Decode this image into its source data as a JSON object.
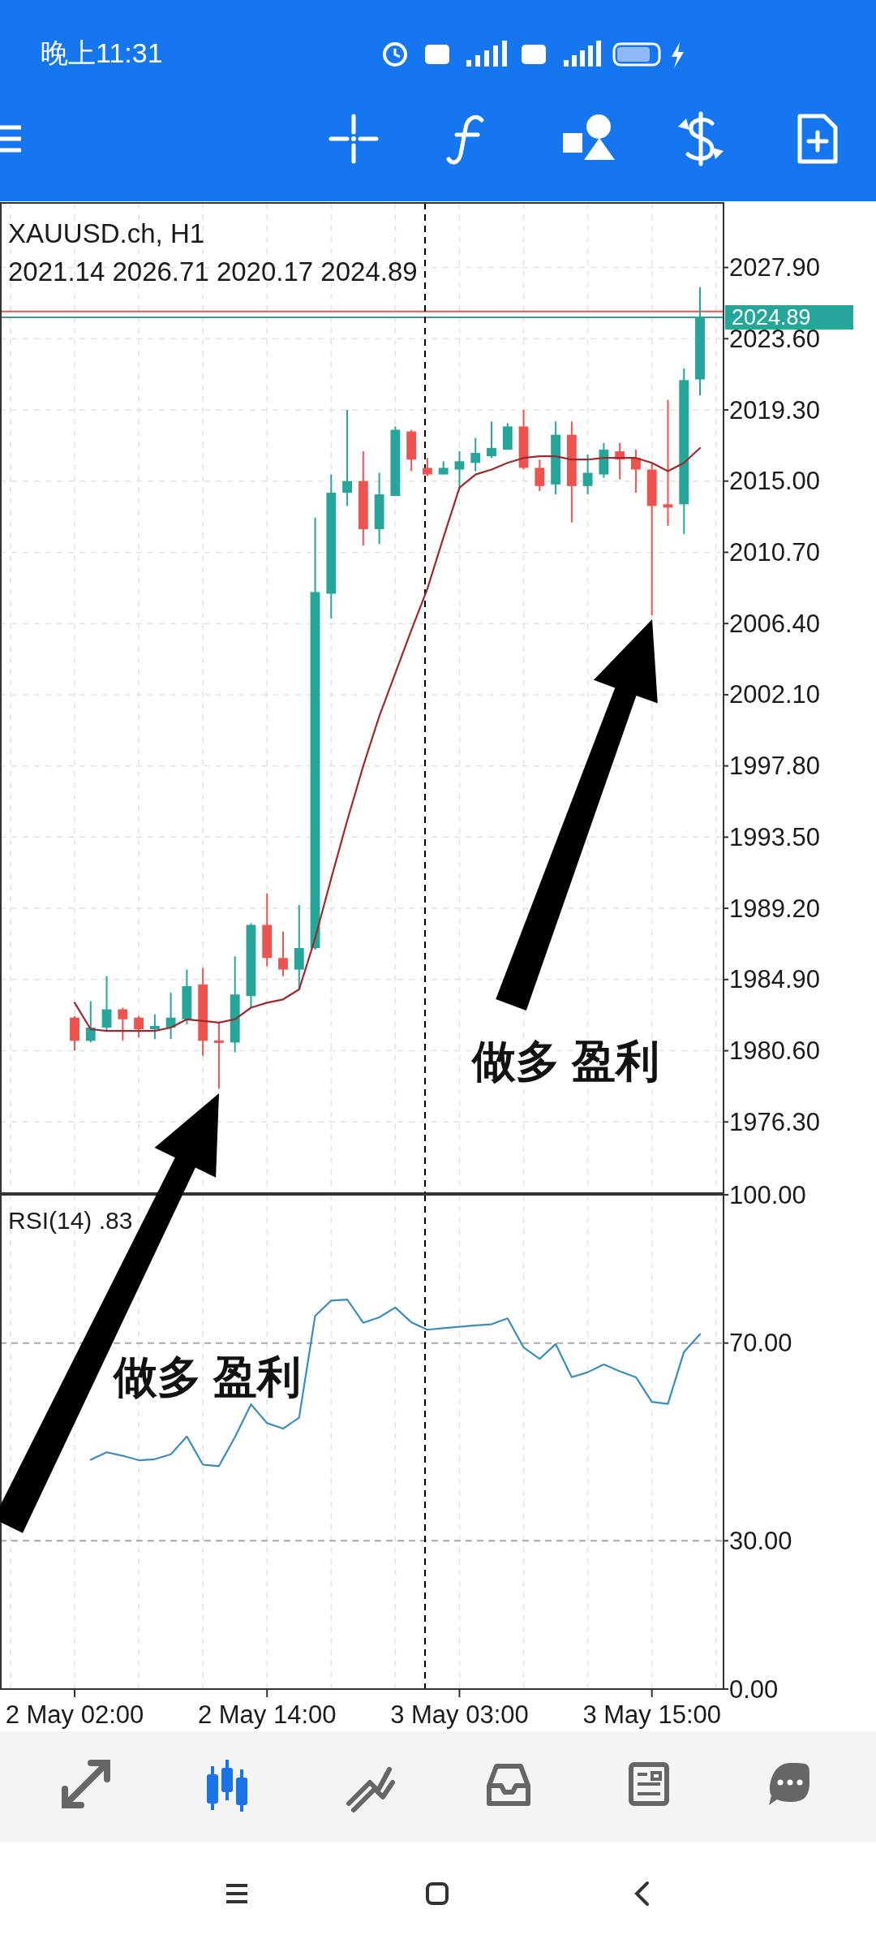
{
  "chart_data": [
    {
      "type": "candlestick",
      "title": "XAUUSD.ch, H1",
      "subtitle": "2021.14 2026.71 2020.17 2024.89",
      "categories": [
        null,
        null,
        null,
        null,
        null,
        null,
        null,
        null,
        null,
        null,
        null,
        null,
        null,
        null,
        null,
        null,
        null,
        null,
        null,
        null,
        null,
        null,
        null,
        null,
        null,
        null,
        null,
        null,
        null,
        null,
        null,
        null,
        null,
        null,
        null,
        null,
        null,
        null,
        null,
        null
      ],
      "ohlc": [
        [
          1982.6,
          1982.7,
          1980.6,
          1981.2
        ],
        [
          1981.2,
          1983.6,
          1981.1,
          1982.0
        ],
        [
          1982.0,
          1985.1,
          1981.8,
          1983.1
        ],
        [
          1983.1,
          1983.2,
          1981.2,
          1982.5
        ],
        [
          1982.6,
          1982.7,
          1981.4,
          1981.9
        ],
        [
          1981.9,
          1982.8,
          1981.3,
          1982.1
        ],
        [
          1982.0,
          1984.1,
          1981.3,
          1982.6
        ],
        [
          1982.5,
          1985.5,
          1982.2,
          1984.5
        ],
        [
          1984.6,
          1985.6,
          1980.3,
          1981.2
        ],
        [
          1981.2,
          1982.3,
          1978.3,
          1981.1
        ],
        [
          1981.1,
          1986.3,
          1980.5,
          1984.0
        ],
        [
          1983.9,
          1988.3,
          1983.2,
          1988.2
        ],
        [
          1988.2,
          1990.1,
          1985.7,
          1986.2
        ],
        [
          1986.2,
          1987.8,
          1985.1,
          1985.5
        ],
        [
          1985.5,
          1989.4,
          1984.3,
          1986.8
        ],
        [
          1986.8,
          2012.8,
          1986.7,
          2008.3
        ],
        [
          2008.2,
          2015.4,
          2006.7,
          2014.3
        ],
        [
          2014.3,
          2019.3,
          2013.5,
          2015.0
        ],
        [
          2015.0,
          2016.8,
          2011.1,
          2012.1
        ],
        [
          2012.1,
          2015.5,
          2011.2,
          2014.2
        ],
        [
          2014.1,
          2018.3,
          2014.1,
          2018.1
        ],
        [
          2018.0,
          2018.1,
          2015.6,
          2016.3
        ],
        [
          2015.8,
          2016.4,
          2015.3,
          2015.4
        ],
        [
          2015.4,
          2016.2,
          2015.4,
          2015.8
        ],
        [
          2015.7,
          2016.8,
          2014.6,
          2016.2
        ],
        [
          2016.1,
          2017.6,
          2015.6,
          2016.7
        ],
        [
          2016.5,
          2018.6,
          2016.4,
          2017.0
        ],
        [
          2016.9,
          2018.5,
          2016.9,
          2018.3
        ],
        [
          2018.3,
          2019.3,
          2015.7,
          2015.8
        ],
        [
          2015.8,
          2016.3,
          2014.4,
          2014.7
        ],
        [
          2014.8,
          2018.6,
          2014.2,
          2017.8
        ],
        [
          2017.8,
          2018.6,
          2012.5,
          2014.7
        ],
        [
          2014.7,
          2016.6,
          2014.2,
          2015.5
        ],
        [
          2015.4,
          2017.3,
          2015.2,
          2016.9
        ],
        [
          2016.8,
          2017.3,
          2015.1,
          2016.3
        ],
        [
          2016.4,
          2016.9,
          2014.3,
          2015.7
        ],
        [
          2015.7,
          2016.1,
          2006.9,
          2013.5
        ],
        [
          2013.6,
          2019.9,
          2012.3,
          2013.4
        ],
        [
          2013.6,
          2021.8,
          2011.8,
          2021.1
        ],
        [
          2021.14,
          2026.71,
          2020.17,
          2024.89
        ]
      ],
      "colors": [
        "#ef5350",
        "#26a69a",
        "#26a69a",
        "#ef5350",
        "#ef5350",
        "#26a69a",
        "#26a69a",
        "#26a69a",
        "#ef5350",
        "#ef5350",
        "#26a69a",
        "#26a69a",
        "#ef5350",
        "#ef5350",
        "#26a69a",
        "#26a69a",
        "#26a69a",
        "#26a69a",
        "#ef5350",
        "#26a69a",
        "#26a69a",
        "#ef5350",
        "#ef5350",
        "#26a69a",
        "#26a69a",
        "#26a69a",
        "#26a69a",
        "#26a69a",
        "#ef5350",
        "#ef5350",
        "#26a69a",
        "#ef5350",
        "#26a69a",
        "#26a69a",
        "#ef5350",
        "#ef5350",
        "#ef5350",
        "#ef5350",
        "#26a69a",
        "#26a69a"
      ],
      "series": [
        {
          "type": "line",
          "color": "#a0282d",
          "values": [
            1983.5,
            1981.9,
            1981.8,
            1981.8,
            1981.8,
            1981.8,
            1982.0,
            1982.5,
            1982.4,
            1982.3,
            1982.5,
            1983.2,
            1983.5,
            1983.7,
            1984.3,
            1987.4,
            1991.0,
            1994.5,
            1997.8,
            2000.8,
            2003.4,
            2006.0,
            2008.5,
            2011.6,
            2014.6,
            2015.4,
            2015.7,
            2016.1,
            2016.4,
            2016.5,
            2016.5,
            2016.3,
            2016.3,
            2016.4,
            2016.4,
            2016.4,
            2016.1,
            2015.6,
            2016.1,
            2017.0
          ]
        }
      ],
      "ylim": [
        1972.0,
        2031.8
      ],
      "yticks": [
        {
          "value": 1976.3,
          "label": "1976.30"
        },
        {
          "value": 1980.6,
          "label": "1980.60"
        },
        {
          "value": 1984.9,
          "label": "1984.90"
        },
        {
          "value": 1989.2,
          "label": "1989.20"
        },
        {
          "value": 1993.5,
          "label": "1993.50"
        },
        {
          "value": 1997.8,
          "label": "1997.80"
        },
        {
          "value": 2002.1,
          "label": "2002.10"
        },
        {
          "value": 2006.4,
          "label": "2006.40"
        },
        {
          "value": 2010.7,
          "label": "2010.70"
        },
        {
          "value": 2015.0,
          "label": "2015.00"
        },
        {
          "value": 2019.3,
          "label": "2019.30"
        },
        {
          "value": 2023.6,
          "label": "2023.60"
        },
        {
          "value": 2027.9,
          "label": "2027.90"
        }
      ],
      "grid": true,
      "tick_labels": "y",
      "ref_lines": [
        {
          "axis": "y",
          "value": 2025.25,
          "color": "#ef5350"
        },
        {
          "axis": "y",
          "value": 2024.89,
          "label": "2024.89",
          "color": "#26a69a"
        }
      ],
      "annotations": [
        "晚上11:31",
        "做多 盈利",
        "做多 盈利"
      ]
    },
    {
      "type": "line",
      "title": "RSI(14) .83",
      "categories": [
        "2 May 02:00",
        null,
        null,
        null,
        null,
        null,
        null,
        null,
        null,
        null,
        null,
        null,
        "2 May 14:00",
        null,
        null,
        null,
        null,
        null,
        null,
        null,
        null,
        null,
        null,
        null,
        "3 May 03:00",
        null,
        null,
        null,
        null,
        null,
        null,
        null,
        null,
        null,
        null,
        null,
        "3 May 15:00",
        null,
        null,
        null
      ],
      "series": [
        {
          "color": "#3a8cc0",
          "values": [
            null,
            46.4,
            47.9,
            47.2,
            46.3,
            46.5,
            47.5,
            51.1,
            45.4,
            45.1,
            51.0,
            57.6,
            53.8,
            52.7,
            54.9,
            75.5,
            78.6,
            78.8,
            74.1,
            75.2,
            77.2,
            74.2,
            72.7,
            73.0,
            73.3,
            73.6,
            73.8,
            75.0,
            69.1,
            66.8,
            69.8,
            63.1,
            64.1,
            65.7,
            64.3,
            63.1,
            58.1,
            57.7,
            68.2,
            71.8
          ]
        }
      ],
      "ylim": [
        0,
        100
      ],
      "yticks": [
        {
          "value": 0,
          "label": "0.00"
        },
        {
          "value": 30,
          "label": "30.00"
        },
        {
          "value": 70,
          "label": "70.00"
        },
        {
          "value": 100,
          "label": "100.00"
        }
      ],
      "grid": "x",
      "ref_lines": [
        {
          "axis": "y",
          "value": 70,
          "color": "#a8a8a8",
          "line_style": "dashed"
        },
        {
          "axis": "y",
          "value": 30,
          "color": "#a8a8a8",
          "line_style": "dashed"
        }
      ]
    }
  ]
}
